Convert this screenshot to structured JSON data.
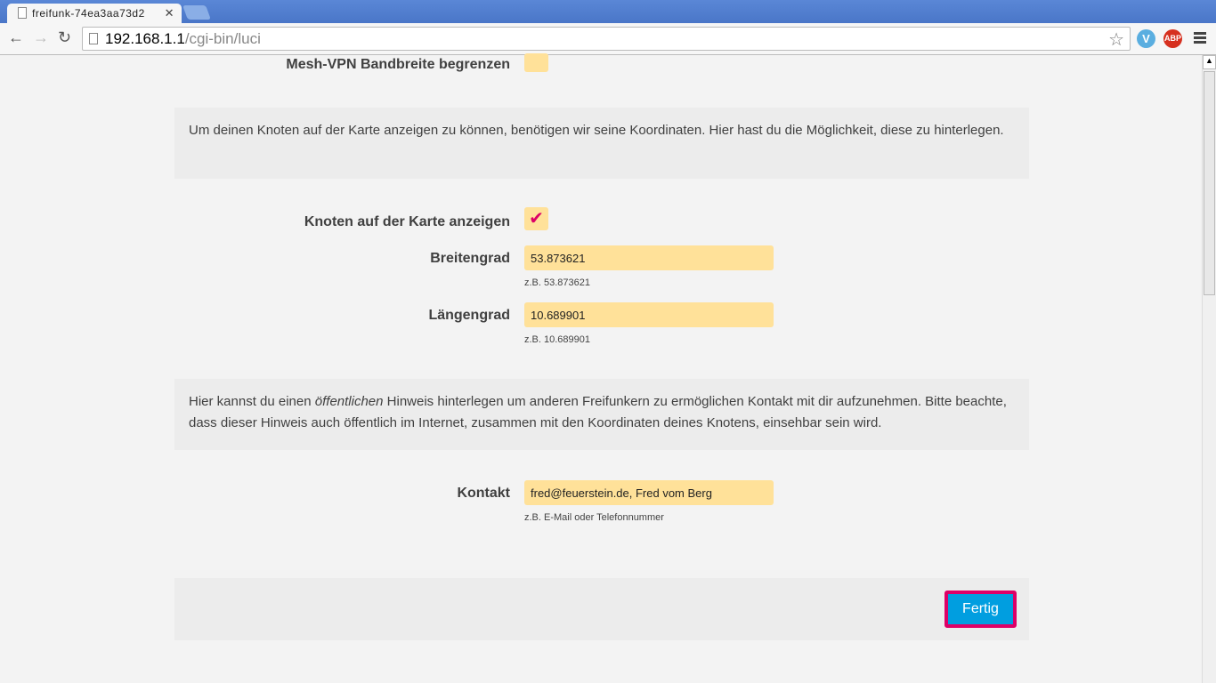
{
  "browser": {
    "tab_title": "freifunk-74ea3aa73d2",
    "url_host": "192.168.1.1",
    "url_path": "/cgi-bin/luci",
    "ext_abp": "ABP",
    "ext_v": "V"
  },
  "form": {
    "mesh_vpn_label": "Mesh-VPN Bandbreite begrenzen",
    "mesh_vpn_checked": false,
    "map_info": "Um deinen Knoten auf der Karte anzeigen zu können, benötigen wir seine Koordinaten. Hier hast du die Möglichkeit, diese zu hinterlegen.",
    "show_map_label": "Knoten auf der Karte anzeigen",
    "show_map_checked": true,
    "lat_label": "Breitengrad",
    "lat_value": "53.873621",
    "lat_hint": "z.B. 53.873621",
    "lon_label": "Längengrad",
    "lon_value": "10.689901",
    "lon_hint": "z.B. 10.689901",
    "contact_info_pre": "Hier kannst du einen ",
    "contact_info_em": "öffentlichen",
    "contact_info_post": " Hinweis hinterlegen um anderen Freifunkern zu ermöglichen Kontakt mit dir aufzunehmen. Bitte beachte, dass dieser Hinweis auch öffentlich im Internet, zusammen mit den Koordinaten deines Knotens, einsehbar sein wird.",
    "contact_label": "Kontakt",
    "contact_value": "fred@feuerstein.de, Fred vom Berg",
    "contact_hint": "z.B. E-Mail oder Telefonnummer",
    "submit_label": "Fertig"
  },
  "colors": {
    "accent": "#dc0067",
    "button": "#009ee0",
    "input": "#ffe199"
  }
}
